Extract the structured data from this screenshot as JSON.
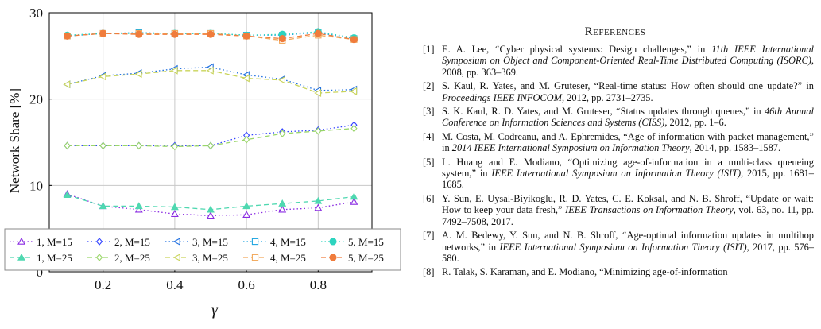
{
  "chart_data": {
    "type": "line",
    "title": "",
    "xlabel": "γ",
    "ylabel": "Network Share [%]",
    "xlim": [
      0.05,
      0.95
    ],
    "ylim": [
      0,
      30
    ],
    "xticks": [
      "0.2",
      "0.4",
      "0.6",
      "0.8"
    ],
    "yticks": [
      "0",
      "10",
      "20",
      "30"
    ],
    "grid": true,
    "legend_position": "bottom (inside)",
    "x": [
      0.1,
      0.2,
      0.3,
      0.4,
      0.5,
      0.6,
      0.7,
      0.8,
      0.9
    ],
    "series": [
      {
        "name": "1, M=15",
        "color": "#8a2be2",
        "marker": "triangle-up",
        "values": [
          9.0,
          7.6,
          7.2,
          6.7,
          6.5,
          6.6,
          7.2,
          7.4,
          8.1
        ]
      },
      {
        "name": "2, M=15",
        "color": "#3344ff",
        "marker": "diamond",
        "values": [
          14.6,
          14.6,
          14.6,
          14.6,
          14.6,
          15.8,
          16.2,
          16.4,
          17.0
        ]
      },
      {
        "name": "3, M=15",
        "color": "#1f6fe0",
        "marker": "triangle-left",
        "values": [
          21.7,
          22.7,
          23.0,
          23.5,
          23.7,
          22.8,
          22.3,
          21.0,
          21.1
        ]
      },
      {
        "name": "4, M=15",
        "color": "#1ea5e0",
        "marker": "square",
        "values": [
          27.3,
          27.6,
          27.7,
          27.6,
          27.6,
          27.4,
          27.4,
          27.7,
          27.0
        ]
      },
      {
        "name": "5, M=15",
        "color": "#2dd4bf",
        "marker": "circle",
        "values": [
          27.4,
          27.6,
          27.6,
          27.6,
          27.6,
          27.4,
          27.5,
          27.8,
          27.1
        ]
      },
      {
        "name": "1, M=25",
        "color": "#4fd8b0",
        "marker": "triangle-up",
        "values": [
          8.9,
          7.6,
          7.6,
          7.5,
          7.2,
          7.6,
          7.9,
          8.2,
          8.7
        ]
      },
      {
        "name": "2, M=25",
        "color": "#9ad66a",
        "marker": "diamond",
        "values": [
          14.6,
          14.6,
          14.6,
          14.5,
          14.6,
          15.3,
          16.0,
          16.3,
          16.6
        ]
      },
      {
        "name": "3, M=25",
        "color": "#c9d45a",
        "marker": "triangle-left",
        "values": [
          21.7,
          22.6,
          22.9,
          23.3,
          23.3,
          22.4,
          22.2,
          20.7,
          20.9
        ]
      },
      {
        "name": "4, M=25",
        "color": "#f2a85a",
        "marker": "square",
        "values": [
          27.3,
          27.6,
          27.6,
          27.6,
          27.6,
          27.3,
          26.8,
          27.4,
          26.9
        ]
      },
      {
        "name": "5, M=25",
        "color": "#f07c3c",
        "marker": "circle",
        "values": [
          27.3,
          27.6,
          27.5,
          27.5,
          27.5,
          27.3,
          27.0,
          27.6,
          26.9
        ]
      }
    ]
  },
  "references": {
    "title": "References",
    "items": [
      {
        "num": "[1]",
        "text": "E. A. Lee, “Cyber physical systems: Design challenges,” in ",
        "venue": "11th IEEE International Symposium on Object and Component-Oriented Real-Time Distributed Computing (ISORC)",
        "tail": ", 2008, pp. 363–369."
      },
      {
        "num": "[2]",
        "text": "S. Kaul, R. Yates, and M. Gruteser, “Real-time status: How often should one update?” in ",
        "venue": "Proceedings IEEE INFOCOM",
        "tail": ", 2012, pp. 2731–2735."
      },
      {
        "num": "[3]",
        "text": "S. K. Kaul, R. D. Yates, and M. Gruteser, “Status updates through queues,” in ",
        "venue": "46th Annual Conference on Information Sciences and Systems (CISS)",
        "tail": ", 2012, pp. 1–6."
      },
      {
        "num": "[4]",
        "text": "M. Costa, M. Codreanu, and A. Ephremides, “Age of information with packet management,” in ",
        "venue": "2014 IEEE International Symposium on Information Theory",
        "tail": ", 2014, pp. 1583–1587."
      },
      {
        "num": "[5]",
        "text": "L. Huang and E. Modiano, “Optimizing age-of-information in a multi-class queueing system,” in ",
        "venue": "IEEE International Symposium on Information Theory (ISIT)",
        "tail": ", 2015, pp. 1681–1685."
      },
      {
        "num": "[6]",
        "text": "Y. Sun, E. Uysal-Biyikoglu, R. D. Yates, C. E. Koksal, and N. B. Shroff, “Update or wait: How to keep your data fresh,” ",
        "venue": "IEEE Transactions on Information Theory",
        "tail": ", vol. 63, no. 11, pp. 7492–7508, 2017."
      },
      {
        "num": "[7]",
        "text": "A. M. Bedewy, Y. Sun, and N. B. Shroff, “Age-optimal information updates in multihop networks,” in ",
        "venue": "IEEE International Symposium on Information Theory (ISIT)",
        "tail": ", 2017, pp. 576–580."
      },
      {
        "num": "[8]",
        "text": "R. Talak, S. Karaman, and E. Modiano, “Minimizing age-of-information",
        "venue": "",
        "tail": ""
      }
    ]
  }
}
